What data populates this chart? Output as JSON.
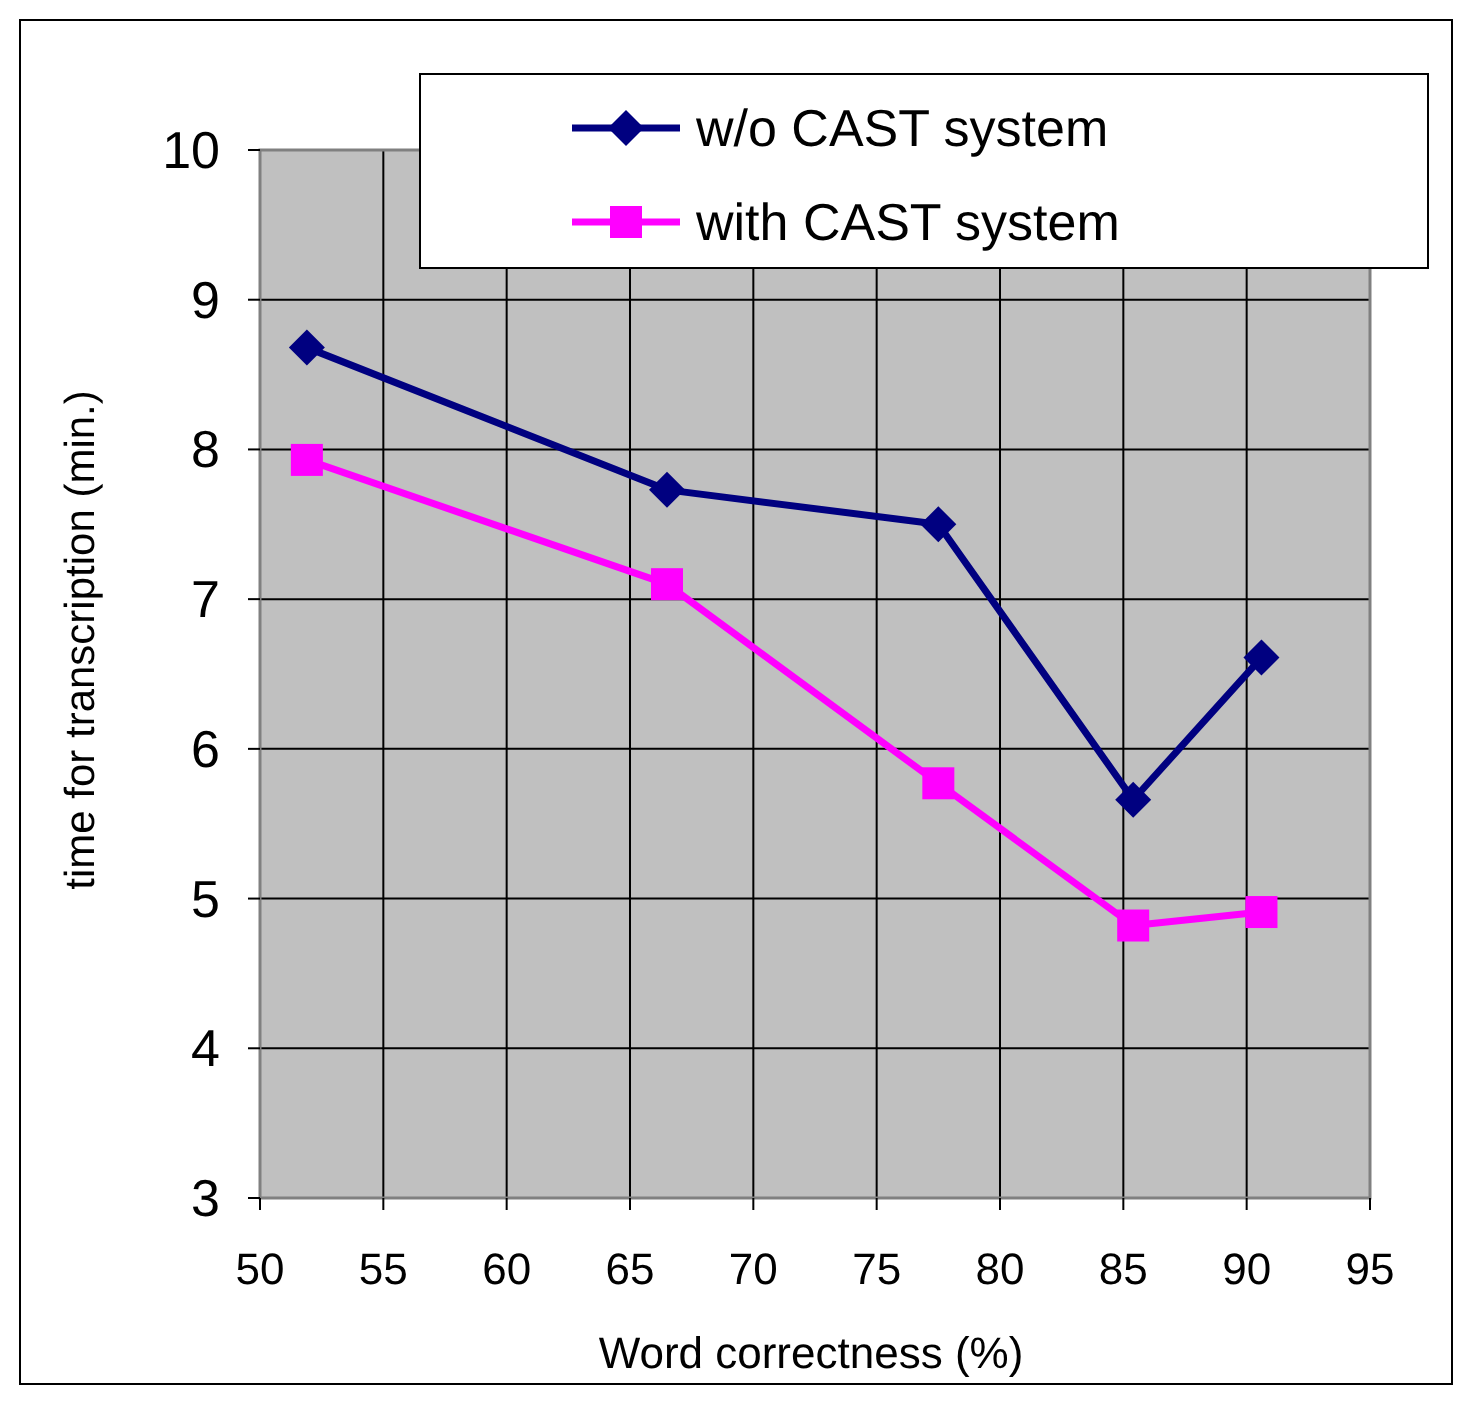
{
  "chart_data": {
    "type": "line",
    "xlabel": "Word correctness (%)",
    "ylabel": "time for transcription (min.)",
    "xlim": [
      50,
      95
    ],
    "xticks": [
      50,
      55,
      60,
      65,
      70,
      75,
      80,
      85,
      90,
      95
    ],
    "ylim": [
      3,
      10
    ],
    "yticks": [
      3,
      4,
      5,
      6,
      7,
      8,
      9,
      10
    ],
    "grid": true,
    "legend": "top right",
    "series": [
      {
        "name": "w/o CAST system",
        "color": "#000080",
        "marker": "diamond",
        "x": [
          51.9,
          66.5,
          77.5,
          85.4,
          90.6
        ],
        "values": [
          8.68,
          7.73,
          7.5,
          5.66,
          6.61
        ]
      },
      {
        "name": "with CAST system",
        "color": "#ff00ff",
        "marker": "square",
        "x": [
          51.9,
          66.5,
          77.5,
          85.4,
          90.6
        ],
        "values": [
          7.93,
          7.1,
          5.77,
          4.82,
          4.91
        ]
      }
    ]
  }
}
